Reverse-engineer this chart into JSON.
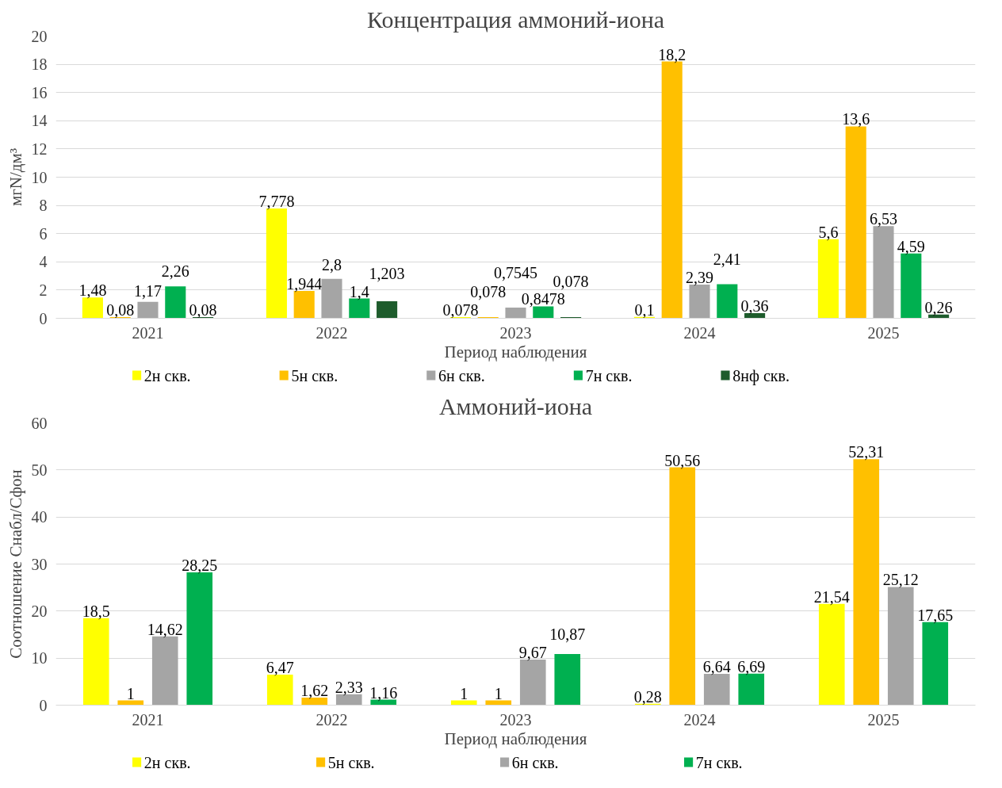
{
  "chart_data": [
    {
      "type": "bar",
      "title": "Концентрация аммоний-иона",
      "xlabel": "Период наблюдения",
      "ylabel": "мгN/дм³",
      "categories": [
        "2021",
        "2022",
        "2023",
        "2024",
        "2025"
      ],
      "ylim": [
        0,
        20
      ],
      "yticks": [
        0,
        2,
        4,
        6,
        8,
        10,
        12,
        14,
        16,
        18,
        20
      ],
      "grid": "y",
      "legend": "bottom",
      "series": [
        {
          "name": "2н скв.",
          "color": "#ffff00",
          "values": [
            1.48,
            7.778,
            0.078,
            0.1,
            5.6
          ],
          "value_labels": [
            "1,48",
            "7,778",
            "0,078",
            "0,1",
            "5,6"
          ]
        },
        {
          "name": "5н скв.",
          "color": "#ffc000",
          "values": [
            0.08,
            1.944,
            0.078,
            18.2,
            13.6
          ],
          "value_labels": [
            "0,08",
            "1,944",
            "0,078",
            "18,2",
            "13,6"
          ]
        },
        {
          "name": "6н скв.",
          "color": "#a5a5a5",
          "values": [
            1.17,
            2.8,
            0.7545,
            2.39,
            6.53
          ],
          "value_labels": [
            "1,17",
            "2,8",
            "0,7545",
            "2,39",
            "6,53"
          ]
        },
        {
          "name": "7н скв.",
          "color": "#00b050",
          "values": [
            2.26,
            1.4,
            0.8478,
            2.41,
            4.59
          ],
          "value_labels": [
            "2,26",
            "1,4",
            "0,8478",
            "2,41",
            "4,59"
          ]
        },
        {
          "name": "8нф скв.",
          "color": "#1e5c2c",
          "values": [
            0.08,
            1.203,
            0.078,
            0.36,
            0.26
          ],
          "value_labels": [
            "0,08",
            "1,203",
            "0,078",
            "0,36",
            "0,26"
          ]
        }
      ]
    },
    {
      "type": "bar",
      "title": "Аммоний-иона",
      "xlabel": "Период наблюдения",
      "ylabel": "Соотношение Cнабл/Cфон",
      "categories": [
        "2021",
        "2022",
        "2023",
        "2024",
        "2025"
      ],
      "ylim": [
        0,
        60
      ],
      "yticks": [
        0,
        10,
        20,
        30,
        40,
        50,
        60
      ],
      "grid": "y",
      "legend": "bottom",
      "series": [
        {
          "name": "2н скв.",
          "color": "#ffff00",
          "values": [
            18.5,
            6.47,
            1,
            0.28,
            21.54
          ],
          "value_labels": [
            "18,5",
            "6,47",
            "1",
            "0,28",
            "21,54"
          ]
        },
        {
          "name": "5н скв.",
          "color": "#ffc000",
          "values": [
            1,
            1.62,
            1,
            50.56,
            52.31
          ],
          "value_labels": [
            "1",
            "1,62",
            "1",
            "50,56",
            "52,31"
          ]
        },
        {
          "name": "6н скв.",
          "color": "#a5a5a5",
          "values": [
            14.62,
            2.33,
            9.67,
            6.64,
            25.12
          ],
          "value_labels": [
            "14,62",
            "2,33",
            "9,67",
            "6,64",
            "25,12"
          ]
        },
        {
          "name": "7н скв.",
          "color": "#00b050",
          "values": [
            28.25,
            1.16,
            10.87,
            6.69,
            17.65
          ],
          "value_labels": [
            "28,25",
            "1,16",
            "10,87",
            "6,69",
            "17,65"
          ]
        }
      ]
    }
  ]
}
